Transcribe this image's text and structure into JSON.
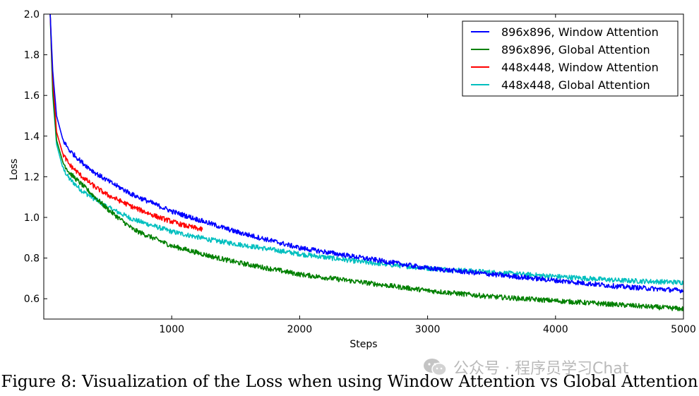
{
  "chart_data": {
    "type": "line",
    "title": "",
    "xlabel": "Steps",
    "ylabel": "Loss",
    "xlim": [
      0,
      5000
    ],
    "ylim": [
      0.5,
      2.0
    ],
    "xticks": [
      1000,
      2000,
      3000,
      4000,
      5000
    ],
    "yticks": [
      0.6,
      0.8,
      1.0,
      1.2,
      1.4,
      1.6,
      1.8,
      2.0
    ],
    "xtick_labels": [
      "1000",
      "2000",
      "3000",
      "4000",
      "5000"
    ],
    "ytick_labels": [
      "0.6",
      "0.8",
      "1.0",
      "1.2",
      "1.4",
      "1.6",
      "1.8",
      "2.0"
    ],
    "grid": false,
    "legend_position": "top-right",
    "series": [
      {
        "name": "896x896, Window Attention",
        "color": "#0000ff",
        "x": [
          50,
          70,
          100,
          150,
          200,
          300,
          400,
          500,
          700,
          1000,
          1300,
          1500,
          2000,
          2500,
          3000,
          3500,
          4000,
          4500,
          5000
        ],
        "y": [
          2.0,
          1.72,
          1.5,
          1.38,
          1.33,
          1.27,
          1.22,
          1.18,
          1.11,
          1.03,
          0.97,
          0.93,
          0.85,
          0.8,
          0.75,
          0.72,
          0.69,
          0.66,
          0.64
        ]
      },
      {
        "name": "896x896, Global Attention",
        "color": "#008000",
        "x": [
          50,
          70,
          100,
          150,
          200,
          300,
          400,
          500,
          700,
          1000,
          1300,
          1500,
          2000,
          2500,
          3000,
          3500,
          4000,
          4500,
          5000
        ],
        "y": [
          2.0,
          1.62,
          1.38,
          1.27,
          1.22,
          1.16,
          1.1,
          1.04,
          0.94,
          0.86,
          0.81,
          0.78,
          0.72,
          0.68,
          0.64,
          0.61,
          0.59,
          0.57,
          0.55
        ]
      },
      {
        "name": "448x448, Window Attention",
        "color": "#ff0000",
        "x": [
          50,
          70,
          100,
          150,
          200,
          300,
          400,
          500,
          700,
          900,
          1100,
          1240
        ],
        "y": [
          2.0,
          1.68,
          1.42,
          1.31,
          1.26,
          1.2,
          1.15,
          1.11,
          1.05,
          1.0,
          0.96,
          0.94
        ]
      },
      {
        "name": "448x448, Global Attention",
        "color": "#00bfbf",
        "x": [
          50,
          70,
          100,
          150,
          200,
          300,
          400,
          500,
          700,
          1000,
          1300,
          1500,
          2000,
          2500,
          3000,
          3500,
          4000,
          4500,
          5000
        ],
        "y": [
          2.0,
          1.6,
          1.36,
          1.24,
          1.19,
          1.13,
          1.09,
          1.05,
          0.99,
          0.93,
          0.89,
          0.87,
          0.82,
          0.78,
          0.75,
          0.73,
          0.71,
          0.69,
          0.68
        ]
      }
    ]
  },
  "caption": "Figure 8: Visualization of the Loss when using Window Attention vs Global Attention",
  "watermark": {
    "icon": "wechat-icon",
    "text": "公众号 · 程序员学习Chat"
  }
}
